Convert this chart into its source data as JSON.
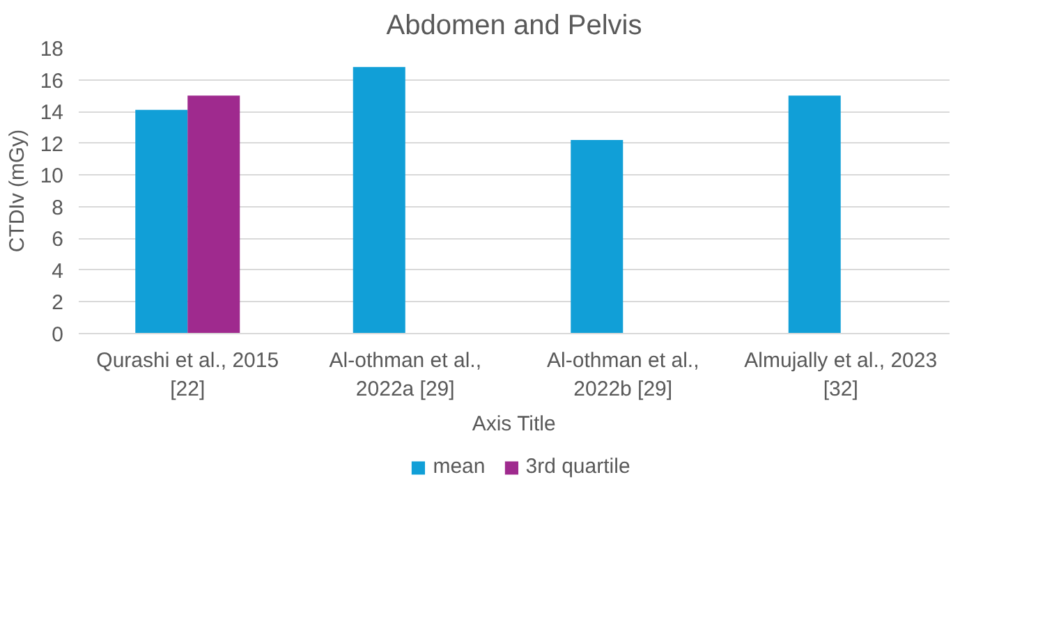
{
  "chart_data": {
    "type": "bar",
    "title": "Abdomen and Pelvis",
    "xlabel": "Axis Title",
    "ylabel": "CTDIv (mGy)",
    "categories": [
      "Qurashi et al., 2015 [22]",
      "Al-othman et al., 2022a [29]",
      "Al-othman et al., 2022b [29]",
      "Almujally et al., 2023 [32]"
    ],
    "series": [
      {
        "name": "mean",
        "color": "#119fd7",
        "values": [
          14.1,
          16.8,
          12.2,
          15.0
        ]
      },
      {
        "name": "3rd quartile",
        "color": "#9f2a8e",
        "values": [
          15.0,
          null,
          null,
          null
        ]
      }
    ],
    "ylim": [
      0,
      18
    ],
    "yticks": [
      0,
      2,
      4,
      6,
      8,
      10,
      12,
      14,
      16,
      18
    ],
    "grid": "y",
    "legend": "bottom"
  }
}
